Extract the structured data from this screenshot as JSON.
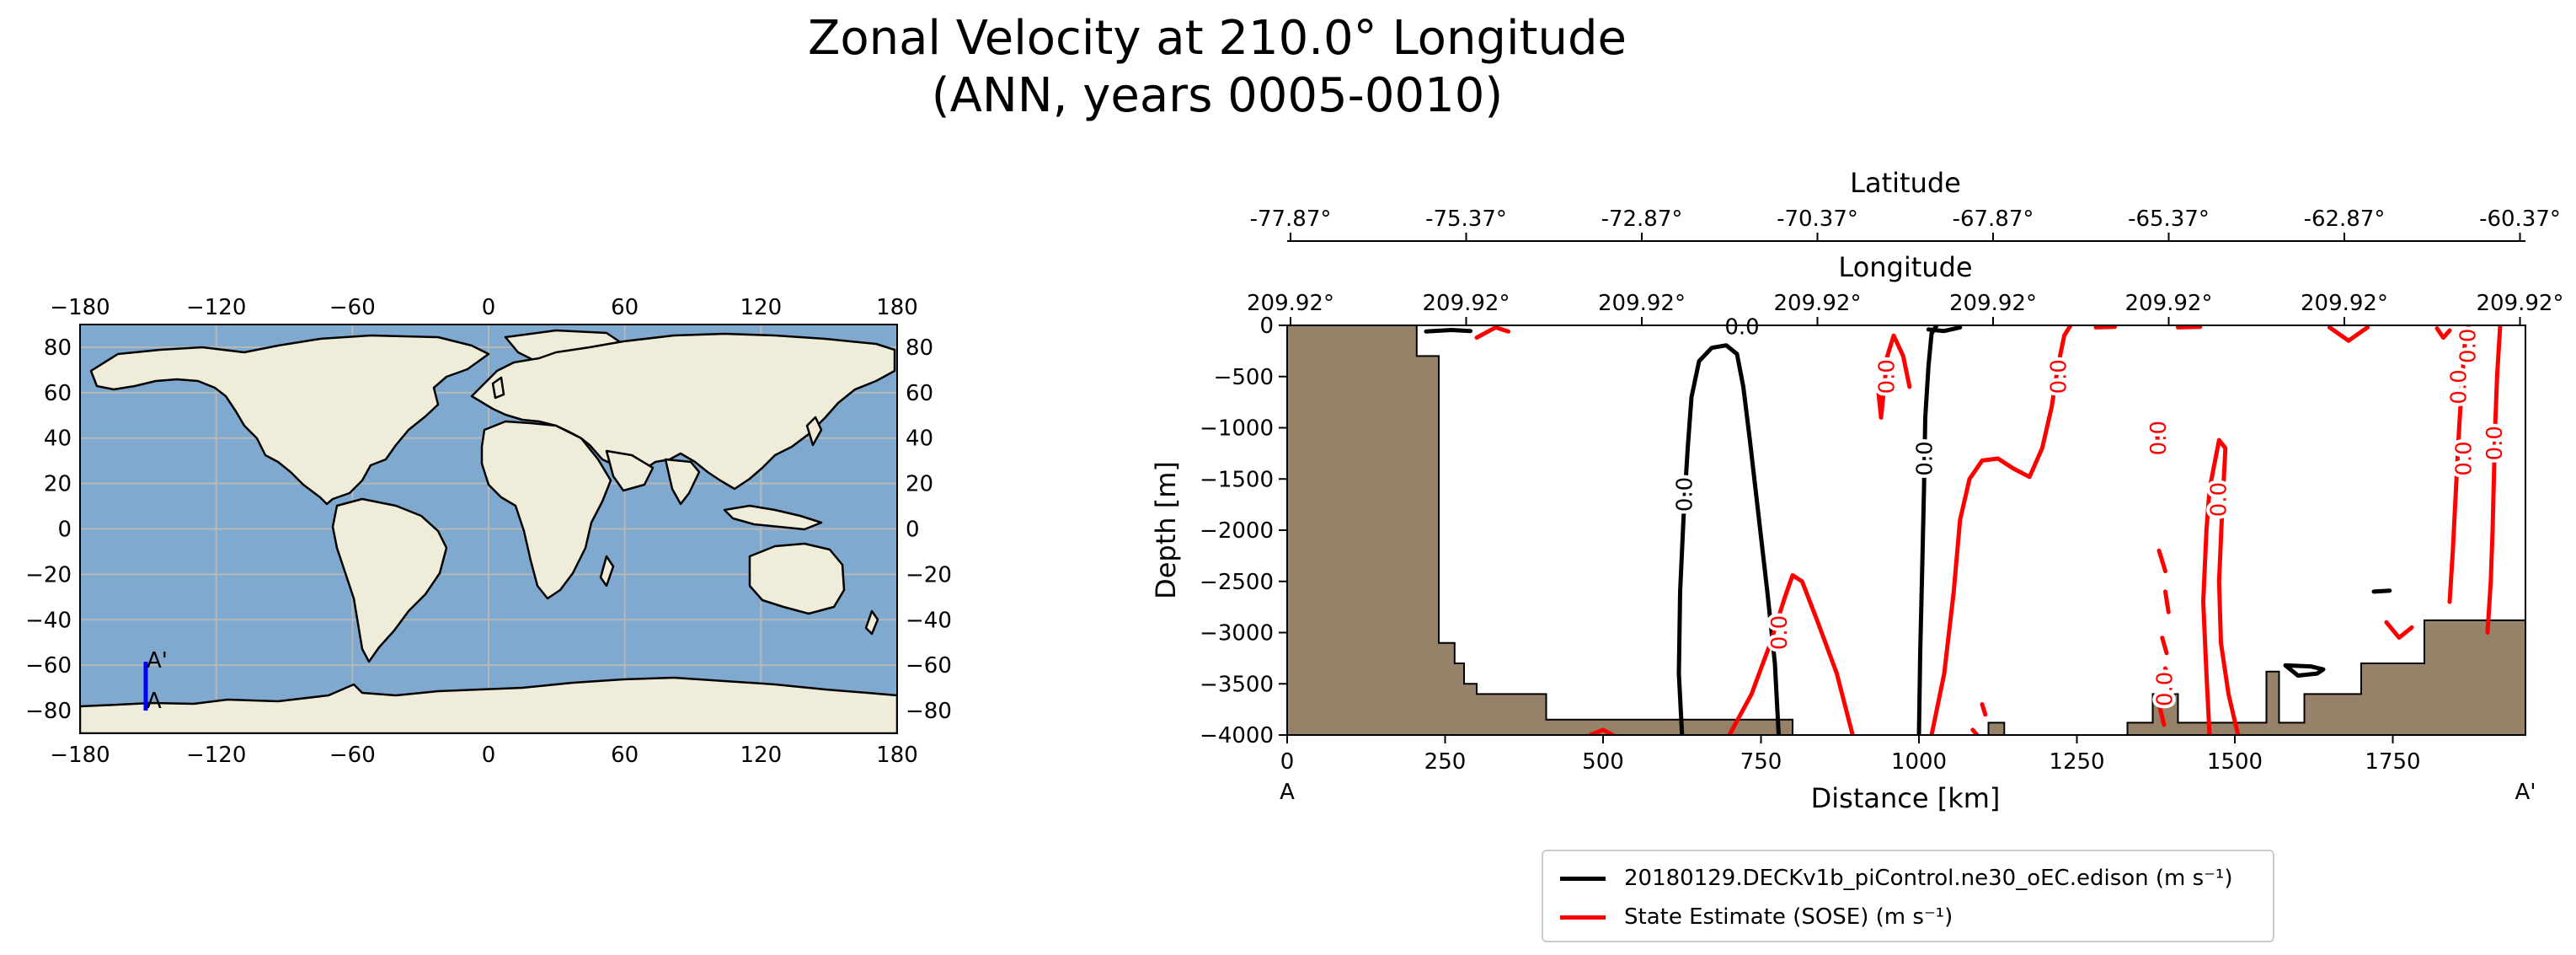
{
  "title": {
    "line1": "Zonal Velocity at 210.0° Longitude",
    "line2": "(ANN, years 0005-0010)"
  },
  "map": {
    "lon_ticks": [
      "−180",
      "−120",
      "−60",
      "0",
      "60",
      "120",
      "180"
    ],
    "lat_ticks": [
      "80",
      "60",
      "40",
      "20",
      "0",
      "−20",
      "−40",
      "−60",
      "−80"
    ],
    "transect_start_label": "A",
    "transect_end_label": "A'",
    "transect_color": "#0000ff",
    "ocean_color": "#7fa9cf",
    "land_color": "#efecda"
  },
  "chart_data": {
    "type": "line",
    "title": "Zonal Velocity at 210.0° Longitude (ANN, years 0005-0010)",
    "xlabel": "Distance [km]",
    "ylabel": "Depth [m]",
    "xlim": [
      0,
      1960
    ],
    "ylim": [
      -4000,
      0
    ],
    "xticks": [
      "0",
      "250",
      "500",
      "750",
      "1000",
      "1250",
      "1500",
      "1750"
    ],
    "yticks": [
      "0",
      "−500",
      "−1000",
      "−1500",
      "−2000",
      "−2500",
      "−3000",
      "−3500",
      "−4000"
    ],
    "x_start_label": "A",
    "x_end_label": "A'",
    "top_axis_latitude": {
      "label": "Latitude",
      "ticks": [
        "-77.87°",
        "-75.37°",
        "-72.87°",
        "-70.37°",
        "-67.87°",
        "-65.37°",
        "-62.87°",
        "-60.37°"
      ]
    },
    "top_axis_longitude": {
      "label": "Longitude",
      "ticks": [
        "209.92°",
        "209.92°",
        "209.92°",
        "209.92°",
        "209.92°",
        "209.92°",
        "209.92°",
        "209.92°"
      ]
    },
    "contour_level_label": "0.0",
    "bathymetry": [
      [
        0,
        0
      ],
      [
        205,
        0
      ],
      [
        205,
        -300
      ],
      [
        240,
        -300
      ],
      [
        240,
        -3100
      ],
      [
        265,
        -3100
      ],
      [
        265,
        -3300
      ],
      [
        280,
        -3300
      ],
      [
        280,
        -3500
      ],
      [
        300,
        -3500
      ],
      [
        300,
        -3600
      ],
      [
        410,
        -3600
      ],
      [
        410,
        -3850
      ],
      [
        800,
        -3850
      ],
      [
        800,
        -4000
      ],
      [
        1110,
        -4000
      ],
      [
        1110,
        -3880
      ],
      [
        1135,
        -3880
      ],
      [
        1135,
        -4000
      ],
      [
        1330,
        -4000
      ],
      [
        1330,
        -3880
      ],
      [
        1370,
        -3880
      ],
      [
        1370,
        -3600
      ],
      [
        1410,
        -3600
      ],
      [
        1410,
        -3880
      ],
      [
        1550,
        -3880
      ],
      [
        1550,
        -3380
      ],
      [
        1570,
        -3380
      ],
      [
        1570,
        -3880
      ],
      [
        1610,
        -3880
      ],
      [
        1610,
        -3600
      ],
      [
        1700,
        -3600
      ],
      [
        1700,
        -3300
      ],
      [
        1800,
        -3300
      ],
      [
        1800,
        -2880
      ],
      [
        1960,
        -2880
      ],
      [
        1960,
        -4000
      ],
      [
        0,
        -4000
      ]
    ],
    "series": [
      {
        "name": "20180129.DECKv1b_piControl.ne30_oEC.edison (m s⁻¹)",
        "color": "#000000",
        "contours": [
          [
            [
              625,
              -4000
            ],
            [
              620,
              -3400
            ],
            [
              622,
              -2600
            ],
            [
              628,
              -1800
            ],
            [
              634,
              -1200
            ],
            [
              640,
              -700
            ],
            [
              652,
              -350
            ],
            [
              672,
              -220
            ],
            [
              695,
              -195
            ],
            [
              712,
              -280
            ],
            [
              722,
              -600
            ],
            [
              732,
              -1100
            ],
            [
              745,
              -1800
            ],
            [
              760,
              -2600
            ],
            [
              772,
              -3300
            ],
            [
              778,
              -4000
            ]
          ],
          [
            [
              1000,
              -4000
            ],
            [
              1002,
              -3200
            ],
            [
              1005,
              -2400
            ],
            [
              1008,
              -1600
            ],
            [
              1010,
              -900
            ],
            [
              1015,
              -400
            ],
            [
              1020,
              -80
            ],
            [
              1028,
              0
            ]
          ],
          [
            [
              1015,
              -40
            ],
            [
              1040,
              -55
            ],
            [
              1065,
              -20
            ]
          ],
          [
            [
              220,
              -60
            ],
            [
              260,
              -45
            ],
            [
              290,
              -55
            ]
          ],
          [
            [
              1580,
              -3320
            ],
            [
              1620,
              -3330
            ],
            [
              1640,
              -3360
            ],
            [
              1630,
              -3400
            ],
            [
              1600,
              -3420
            ],
            [
              1580,
              -3320
            ]
          ],
          [
            [
              1720,
              -2600
            ],
            [
              1745,
              -2590
            ]
          ]
        ]
      },
      {
        "name": "State Estimate (SOSE) (m s⁻¹)",
        "color": "#ff0000",
        "contours": [
          [
            [
              700,
              -4000
            ],
            [
              735,
              -3600
            ],
            [
              765,
              -3100
            ],
            [
              788,
              -2650
            ],
            [
              800,
              -2440
            ],
            [
              815,
              -2500
            ],
            [
              840,
              -2900
            ],
            [
              870,
              -3400
            ],
            [
              895,
              -4000
            ]
          ],
          [
            [
              1020,
              -4000
            ],
            [
              1040,
              -3400
            ],
            [
              1055,
              -2600
            ],
            [
              1065,
              -1900
            ],
            [
              1080,
              -1500
            ],
            [
              1100,
              -1320
            ],
            [
              1125,
              -1300
            ],
            [
              1150,
              -1400
            ],
            [
              1175,
              -1480
            ],
            [
              1195,
              -1200
            ],
            [
              1210,
              -800
            ],
            [
              1220,
              -400
            ],
            [
              1230,
              -100
            ],
            [
              1240,
              0
            ]
          ],
          [
            [
              935,
              -600
            ],
            [
              940,
              -900
            ],
            [
              945,
              -600
            ],
            [
              950,
              -300
            ],
            [
              960,
              -100
            ],
            [
              975,
              -300
            ],
            [
              985,
              -600
            ]
          ],
          [
            [
              1375,
              -1000
            ],
            [
              1380,
              -1200
            ],
            [
              1385,
              -1000
            ]
          ],
          [
            [
              1460,
              -4000
            ],
            [
              1455,
              -3400
            ],
            [
              1450,
              -2700
            ],
            [
              1455,
              -2000
            ],
            [
              1460,
              -1600
            ],
            [
              1475,
              -1120
            ],
            [
              1485,
              -1200
            ],
            [
              1480,
              -1800
            ],
            [
              1475,
              -2500
            ],
            [
              1478,
              -3100
            ],
            [
              1490,
              -3600
            ],
            [
              1505,
              -4000
            ]
          ],
          [
            [
              1840,
              -2700
            ],
            [
              1845,
              -2200
            ],
            [
              1850,
              -1600
            ],
            [
              1855,
              -1000
            ],
            [
              1860,
              -500
            ],
            [
              1865,
              -100
            ],
            [
              1870,
              0
            ]
          ],
          [
            [
              1900,
              -3000
            ],
            [
              1905,
              -2500
            ],
            [
              1908,
              -2000
            ],
            [
              1910,
              -1500
            ],
            [
              1912,
              -1000
            ],
            [
              1915,
              -500
            ],
            [
              1920,
              0
            ]
          ],
          [
            [
              1820,
              -30
            ],
            [
              1830,
              -120
            ],
            [
              1840,
              -50
            ]
          ],
          [
            [
              1650,
              -20
            ],
            [
              1680,
              -150
            ],
            [
              1710,
              -20
            ]
          ],
          [
            [
              300,
              -120
            ],
            [
              330,
              -20
            ],
            [
              350,
              -60
            ]
          ],
          [
            [
              1380,
              -2200
            ],
            [
              1390,
              -2400
            ]
          ],
          [
            [
              1390,
              -2600
            ],
            [
              1395,
              -2800
            ]
          ],
          [
            [
              1385,
              -3050
            ],
            [
              1392,
              -3200
            ]
          ],
          [
            [
              1390,
              -3350
            ],
            [
              1396,
              -3500
            ]
          ],
          [
            [
              1380,
              -3700
            ],
            [
              1388,
              -3900
            ]
          ],
          [
            [
              1100,
              -3700
            ],
            [
              1105,
              -3800
            ]
          ],
          [
            [
              1085,
              -3950
            ],
            [
              1092,
              -4000
            ]
          ],
          [
            [
              480,
              -4000
            ],
            [
              500,
              -3950
            ],
            [
              515,
              -4000
            ]
          ],
          [
            [
              1740,
              -2900
            ],
            [
              1760,
              -3050
            ],
            [
              1780,
              -2950
            ]
          ],
          [
            [
              1280,
              -20
            ],
            [
              1310,
              -15
            ]
          ],
          [
            [
              1410,
              -20
            ],
            [
              1445,
              -15
            ]
          ]
        ]
      }
    ]
  },
  "legend": {
    "entries": [
      {
        "label": "20180129.DECKv1b_piControl.ne30_oEC.edison (m s⁻¹)",
        "color": "#000000"
      },
      {
        "label": "State Estimate (SOSE) (m s⁻¹)",
        "color": "#ff0000"
      }
    ]
  }
}
